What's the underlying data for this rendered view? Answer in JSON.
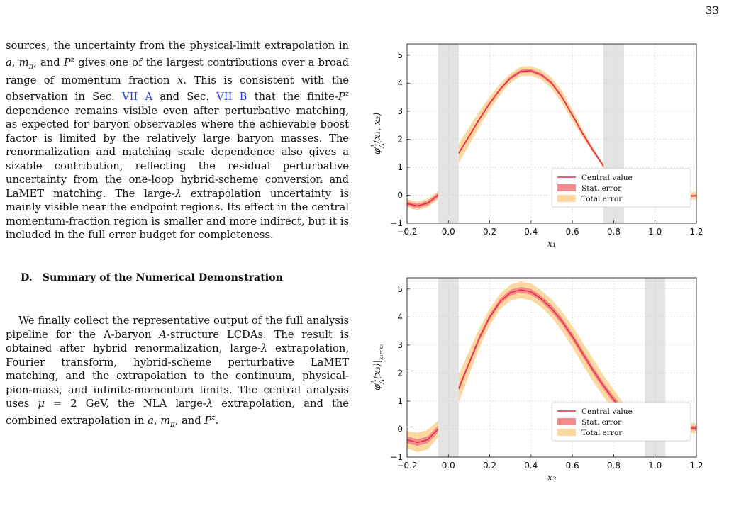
{
  "page_number": "33",
  "text": {
    "para1": [
      {
        "t": "sources, the uncertainty from the physical-limit extrapolation in "
      },
      {
        "t": "a",
        "i": true
      },
      {
        "t": ", "
      },
      {
        "t": "m",
        "i": true
      },
      {
        "t": "π",
        "i": true,
        "sub": true
      },
      {
        "t": ", and "
      },
      {
        "t": "P",
        "i": true
      },
      {
        "t": "z",
        "i": true,
        "sup": true
      },
      {
        "t": " gives one of the largest contributions over a broad range of momentum fraction "
      },
      {
        "t": "x",
        "i": true
      },
      {
        "t": ". This is consistent with the observation in Sec. "
      },
      {
        "t": "VII A",
        "link": true
      },
      {
        "t": " and Sec. "
      },
      {
        "t": "VII B",
        "link": true
      },
      {
        "t": " that the finite-"
      },
      {
        "t": "P",
        "i": true
      },
      {
        "t": "z",
        "i": true,
        "sup": true
      },
      {
        "t": " dependence remains visible even after perturbative matching, as expected for baryon observables where the achievable boost factor is limited by the relatively large baryon masses. The renormalization and matching scale dependence also gives a sizable contribution, reflecting the residual perturbative uncertainty from the one-loop hybrid-scheme conversion and LaMET matching. The large-"
      },
      {
        "t": "λ",
        "i": true
      },
      {
        "t": " extrapolation uncertainty is mainly visible near the endpoint regions. Its effect in the central momentum-fraction region is smaller and more indirect, but it is included in the full error budget for completeness."
      }
    ],
    "section_number": "D.",
    "section_title": "Summary of the Numerical Demonstration",
    "para2": [
      {
        "t": "We finally collect the representative output of the full analysis pipeline for the Λ-baryon "
      },
      {
        "t": "A",
        "i": true
      },
      {
        "t": "-structure LCDAs. The result is obtained after hybrid renormalization, large-"
      },
      {
        "t": "λ",
        "i": true
      },
      {
        "t": " extrapolation, Fourier transform, hybrid-scheme perturbative LaMET matching, and the extrapolation to the continuum, physical-pion-mass, and infinite-momentum limits. The central analysis uses "
      },
      {
        "t": "μ",
        "i": true
      },
      {
        "t": " = 2 GeV, the NLA large-"
      },
      {
        "t": "λ",
        "i": true
      },
      {
        "t": " extrapolation, and the combined extrapolation in "
      },
      {
        "t": "a",
        "i": true
      },
      {
        "t": ", "
      },
      {
        "t": "m",
        "i": true
      },
      {
        "t": "π",
        "i": true,
        "sub": true
      },
      {
        "t": ", and "
      },
      {
        "t": "P",
        "i": true
      },
      {
        "t": "z",
        "i": true,
        "sup": true
      },
      {
        "t": "."
      }
    ]
  },
  "chart_data": [
    {
      "type": "line",
      "xlabel": "x₁",
      "ylabel_main": "φ",
      "ylabel_sup": "A",
      "ylabel_sub": "Λ",
      "ylabel_args": "(x₁, x₂)",
      "xlim": [
        -0.2,
        1.2
      ],
      "ylim": [
        -1,
        5.4
      ],
      "xticks": [
        "−0.2",
        "0.0",
        "0.2",
        "0.4",
        "0.6",
        "0.8",
        "1.0",
        "1.2"
      ],
      "xtick_values": [
        -0.2,
        0.0,
        0.2,
        0.4,
        0.6,
        0.8,
        1.0,
        1.2
      ],
      "yticks": [
        "−1",
        "0",
        "1",
        "2",
        "3",
        "4",
        "5"
      ],
      "ytick_values": [
        -1,
        0,
        1,
        2,
        3,
        4,
        5
      ],
      "grid": true,
      "shaded_regions": [
        [
          -0.05,
          0.05
        ],
        [
          0.75,
          0.85
        ]
      ],
      "legend": {
        "placement": "lower-right",
        "entries": [
          "Central value",
          "Stat. error",
          "Total error"
        ]
      },
      "colors": {
        "central": "#e8283c",
        "stat": "#f28b8b",
        "total": "#fcd9a0",
        "shaded": "#e3e3e3"
      },
      "series": [
        {
          "name": "Central value",
          "segments": [
            {
              "x": [
                -0.2,
                -0.15,
                -0.1,
                -0.05
              ],
              "y": [
                -0.3,
                -0.38,
                -0.28,
                0.0
              ],
              "stat": [
                0.08,
                0.08,
                0.08,
                0.08
              ],
              "total": [
                0.15,
                0.15,
                0.15,
                0.15
              ]
            },
            {
              "x": [
                0.05,
                0.1,
                0.15,
                0.2,
                0.25,
                0.3,
                0.35,
                0.4,
                0.45,
                0.5,
                0.55,
                0.6,
                0.65,
                0.7,
                0.75
              ],
              "y": [
                1.5,
                2.1,
                2.72,
                3.28,
                3.78,
                4.18,
                4.42,
                4.44,
                4.3,
                4.0,
                3.5,
                2.86,
                2.2,
                1.6,
                1.05
              ],
              "stat": [
                0.06,
                0.06,
                0.06,
                0.06,
                0.06,
                0.06,
                0.06,
                0.06,
                0.06,
                0.06,
                0.06,
                0.06,
                0.06,
                0.06,
                0.06
              ],
              "total": [
                0.35,
                0.32,
                0.28,
                0.24,
                0.2,
                0.17,
                0.17,
                0.17,
                0.17,
                0.2,
                0.22,
                0.2,
                0.15,
                0.1,
                0.05
              ]
            },
            {
              "x": [
                0.85,
                0.9,
                0.95,
                1.0,
                1.05,
                1.1,
                1.15,
                1.2
              ],
              "y": [
                0.0,
                -0.12,
                -0.15,
                -0.12,
                -0.08,
                -0.05,
                -0.03,
                -0.02
              ],
              "stat": [
                0.04,
                0.04,
                0.04,
                0.04,
                0.04,
                0.04,
                0.04,
                0.04
              ],
              "total": [
                0.1,
                0.1,
                0.1,
                0.1,
                0.1,
                0.12,
                0.13,
                0.14
              ]
            }
          ]
        }
      ]
    },
    {
      "type": "line",
      "xlabel": "x₃",
      "ylabel_main": "φ",
      "ylabel_sup": "A",
      "ylabel_sub": "Λ",
      "ylabel_args": "(x₃)|",
      "ylabel_restrict": "x₁=x₂",
      "xlim": [
        -0.2,
        1.2
      ],
      "ylim": [
        -1,
        5.4
      ],
      "xticks": [
        "−0.2",
        "0.0",
        "0.2",
        "0.4",
        "0.6",
        "0.8",
        "1.0",
        "1.2"
      ],
      "xtick_values": [
        -0.2,
        0.0,
        0.2,
        0.4,
        0.6,
        0.8,
        1.0,
        1.2
      ],
      "yticks": [
        "−1",
        "0",
        "1",
        "2",
        "3",
        "4",
        "5"
      ],
      "ytick_values": [
        -1,
        0,
        1,
        2,
        3,
        4,
        5
      ],
      "grid": true,
      "shaded_regions": [
        [
          -0.05,
          0.05
        ],
        [
          0.95,
          1.05
        ]
      ],
      "legend": {
        "placement": "lower-right",
        "entries": [
          "Central value",
          "Stat. error",
          "Total error"
        ]
      },
      "colors": {
        "central": "#e8283c",
        "stat": "#f28b8b",
        "total": "#fcd9a0",
        "shaded": "#e3e3e3"
      },
      "series": [
        {
          "name": "Central value",
          "segments": [
            {
              "x": [
                -0.2,
                -0.15,
                -0.1,
                -0.05
              ],
              "y": [
                -0.38,
                -0.48,
                -0.38,
                0.0
              ],
              "stat": [
                0.12,
                0.12,
                0.12,
                0.12
              ],
              "total": [
                0.3,
                0.35,
                0.35,
                0.3
              ]
            },
            {
              "x": [
                0.05,
                0.1,
                0.15,
                0.2,
                0.25,
                0.3,
                0.35,
                0.4,
                0.45,
                0.5,
                0.55,
                0.6,
                0.65,
                0.7,
                0.75,
                0.8,
                0.85,
                0.9,
                0.95
              ],
              "y": [
                1.45,
                2.35,
                3.25,
                4.0,
                4.55,
                4.87,
                4.97,
                4.9,
                4.65,
                4.3,
                3.85,
                3.3,
                2.7,
                2.1,
                1.55,
                1.05,
                0.62,
                0.28,
                0.05
              ],
              "stat": [
                0.1,
                0.1,
                0.1,
                0.1,
                0.1,
                0.1,
                0.1,
                0.1,
                0.1,
                0.12,
                0.12,
                0.12,
                0.12,
                0.12,
                0.12,
                0.12,
                0.12,
                0.12,
                0.1
              ],
              "total": [
                0.5,
                0.42,
                0.35,
                0.3,
                0.28,
                0.28,
                0.3,
                0.3,
                0.3,
                0.32,
                0.35,
                0.38,
                0.4,
                0.4,
                0.38,
                0.35,
                0.28,
                0.2,
                0.15
              ]
            },
            {
              "x": [
                1.05,
                1.1,
                1.15,
                1.2
              ],
              "y": [
                0.05,
                0.05,
                0.05,
                0.03
              ],
              "stat": [
                0.08,
                0.08,
                0.08,
                0.08
              ],
              "total": [
                0.18,
                0.18,
                0.18,
                0.18
              ]
            }
          ]
        }
      ]
    }
  ]
}
